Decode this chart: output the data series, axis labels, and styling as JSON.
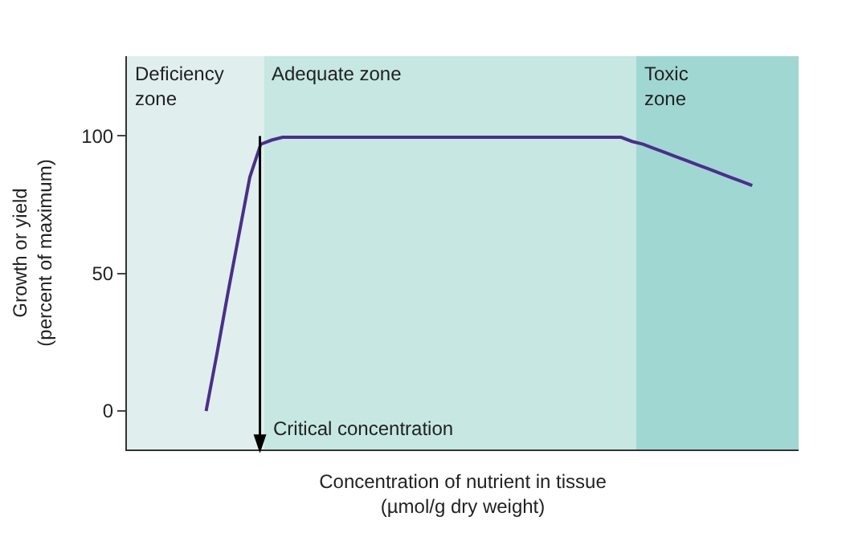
{
  "chart_data": {
    "type": "line",
    "xlabel": "Concentration of nutrient in tissue\n(µmol/g dry weight)",
    "ylabel": "Growth or yield\n(percent of maximum)",
    "categories": [
      null,
      null,
      null,
      null,
      null,
      null,
      null,
      null,
      null,
      null,
      null,
      null,
      null,
      null,
      null,
      null,
      null,
      null,
      null,
      null,
      null,
      null,
      null,
      null,
      null,
      null,
      null,
      null,
      null,
      null,
      null,
      null,
      null,
      null,
      null,
      null,
      null,
      null,
      null,
      null,
      null,
      null,
      null,
      null,
      null,
      null,
      null,
      null,
      null,
      null,
      null
    ],
    "series": [
      {
        "color": "#4b2f8a",
        "values": [
          0,
          21,
          43,
          64,
          85,
          97,
          98.5,
          99.5,
          99.5,
          99.5,
          99.5,
          99.5,
          99.5,
          99.5,
          99.5,
          99.5,
          99.5,
          99.5,
          99.5,
          99.5,
          99.5,
          99.5,
          99.5,
          99.5,
          99.5,
          99.5,
          99.5,
          99.5,
          99.5,
          99.5,
          99.5,
          99.5,
          99.5,
          99.5,
          99.5,
          99.5,
          99.5,
          99.5,
          99.5,
          98,
          97,
          95.5,
          94,
          92.5,
          91,
          89.5,
          88,
          86.5,
          85,
          83.5,
          82
        ]
      }
    ],
    "ylim": [
      -14,
      129
    ],
    "yticks": [
      0,
      50,
      100
    ],
    "tick_labels": "y",
    "grid": false,
    "marker": "none",
    "annotations": [
      "Deficiency\nzone",
      "Adequate zone",
      "Toxic\nzone",
      "Critical concentration"
    ]
  }
}
